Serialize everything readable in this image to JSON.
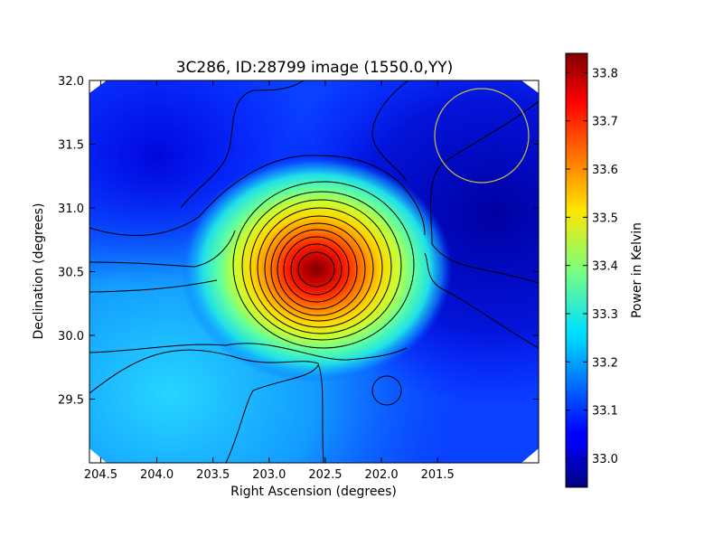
{
  "chart_data": {
    "type": "heatmap",
    "title": "3C286, ID:28799 image (1550.0,YY)",
    "xlabel": "Right Ascension (degrees)",
    "ylabel": "Declination (degrees)",
    "xlim": [
      204.6,
      200.6
    ],
    "ylim": [
      29.0,
      32.0
    ],
    "x_ticks": [
      "204.5",
      "204.0",
      "203.5",
      "203.0",
      "202.5",
      "202.0",
      "201.5"
    ],
    "y_ticks": [
      "29.5",
      "30.0",
      "30.5",
      "31.0",
      "31.5",
      "32.0"
    ],
    "colorbar": {
      "label": "Power in Kelvin",
      "range": [
        32.94,
        33.84
      ],
      "ticks": [
        "33.0",
        "33.1",
        "33.2",
        "33.3",
        "33.4",
        "33.5",
        "33.6",
        "33.7",
        "33.8"
      ],
      "colormap": "jet"
    },
    "source_peak": {
      "ra": 202.78,
      "dec": 30.51,
      "value": 33.84
    },
    "secondary_feature": {
      "ra": 202.2,
      "dec": 29.56
    },
    "beam": {
      "ra": 201.47,
      "dec": 31.56,
      "radius_deg": 0.42,
      "color": "#c8c040"
    },
    "contours": "black"
  }
}
